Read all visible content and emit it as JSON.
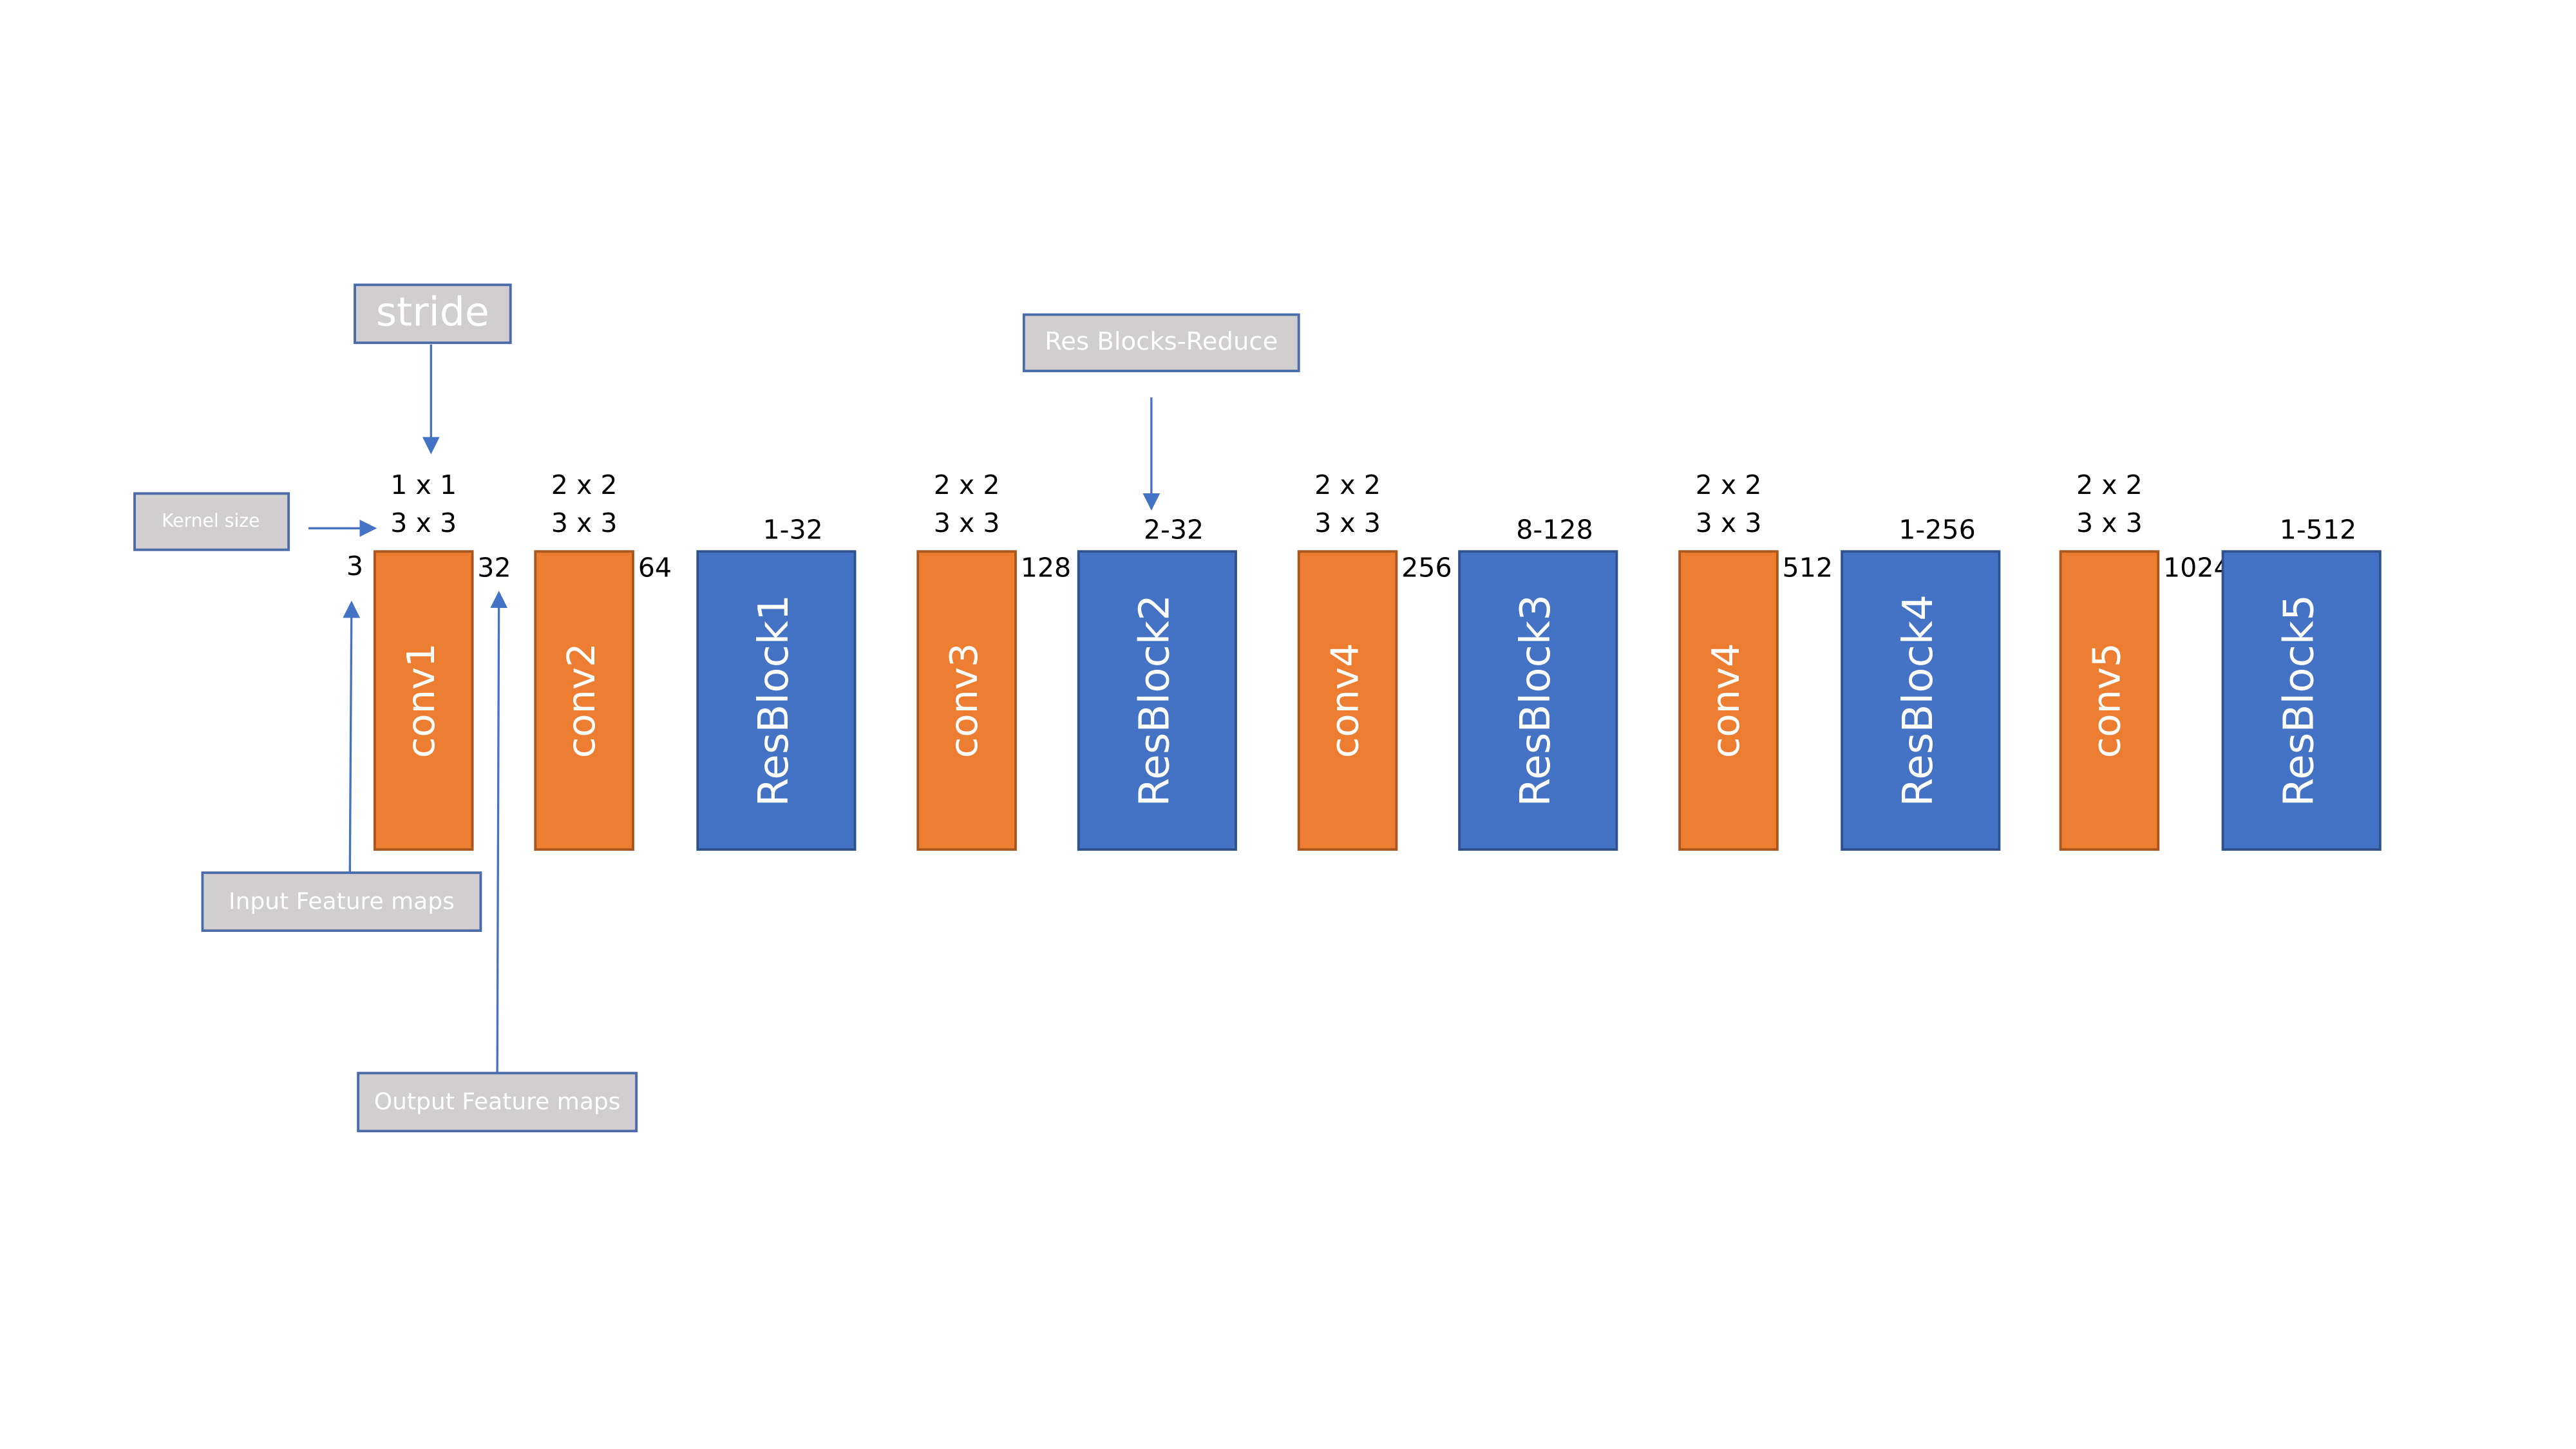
{
  "annotations": {
    "stride": "stride",
    "kernel_size": "Kernel size",
    "res_blocks_reduce": "Res Blocks-Reduce",
    "input_feature_maps": "Input Feature maps",
    "output_feature_maps": "Output Feature maps"
  },
  "input_channels": "3",
  "blocks": [
    {
      "label": "conv1",
      "kind": "conv",
      "stride": "1 x 1",
      "kernel": "3 x 3",
      "out": "32"
    },
    {
      "label": "conv2",
      "kind": "conv",
      "stride": "2 x 2",
      "kernel": "3 x 3",
      "out": "64"
    },
    {
      "label": "ResBlock1",
      "kind": "res",
      "count": "1-32"
    },
    {
      "label": "conv3",
      "kind": "conv",
      "stride": "2 x 2",
      "kernel": "3 x 3",
      "out": "128"
    },
    {
      "label": "ResBlock2",
      "kind": "res",
      "count": "2-32"
    },
    {
      "label": "conv4",
      "kind": "conv",
      "stride": "2 x 2",
      "kernel": "3 x 3",
      "out": "256"
    },
    {
      "label": "ResBlock3",
      "kind": "res",
      "count": "8-128"
    },
    {
      "label": "conv4",
      "kind": "conv",
      "stride": "2 x 2",
      "kernel": "3 x 3",
      "out": "512"
    },
    {
      "label": "ResBlock4",
      "kind": "res",
      "count": "1-256"
    },
    {
      "label": "conv5",
      "kind": "conv",
      "stride": "2 x 2",
      "kernel": "3 x 3",
      "out": "1024"
    },
    {
      "label": "ResBlock5",
      "kind": "res",
      "count": "1-512"
    }
  ]
}
